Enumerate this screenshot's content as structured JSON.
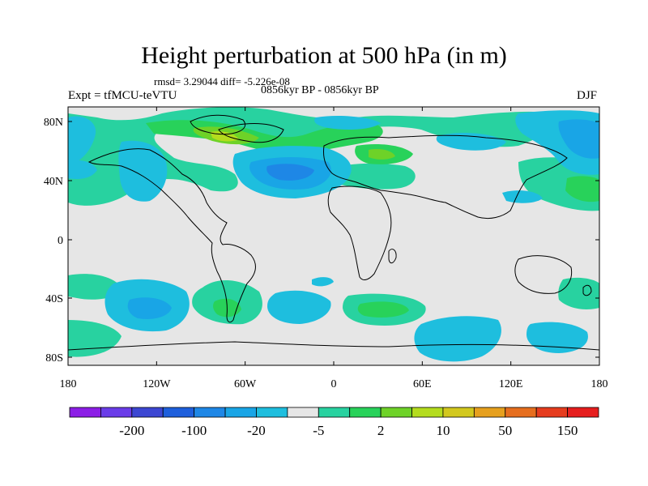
{
  "title": "Height perturbation at 500 hPa (in m)",
  "stats_text": "rmsd= 3.29044 diff= -5.226e-08",
  "period_text": "0856kyr BP - 0856kyr BP",
  "experiment_text": "Expt = tfMCU-teVTU",
  "season_text": "DJF",
  "map": {
    "lat_ticks": [
      "80N",
      "40N",
      "0",
      "40S",
      "80S"
    ],
    "lon_ticks": [
      "180",
      "120W",
      "60W",
      "0",
      "60E",
      "120E",
      "180"
    ],
    "missing_color": "#e6e6e6"
  },
  "colorbar": {
    "labels": [
      "-200",
      "-100",
      "-20",
      "-5",
      "2",
      "10",
      "50",
      "150"
    ],
    "colors": [
      "#8c1ee6",
      "#6a3ce8",
      "#3c46d2",
      "#1e5fdc",
      "#1e87e6",
      "#19a5e6",
      "#1ebede",
      "#e6e6e6",
      "#28d2a0",
      "#28d25a",
      "#6ed228",
      "#b4dc1e",
      "#d2c81e",
      "#e6a01e",
      "#e66e1e",
      "#e63c1e",
      "#e61e1e"
    ]
  }
}
